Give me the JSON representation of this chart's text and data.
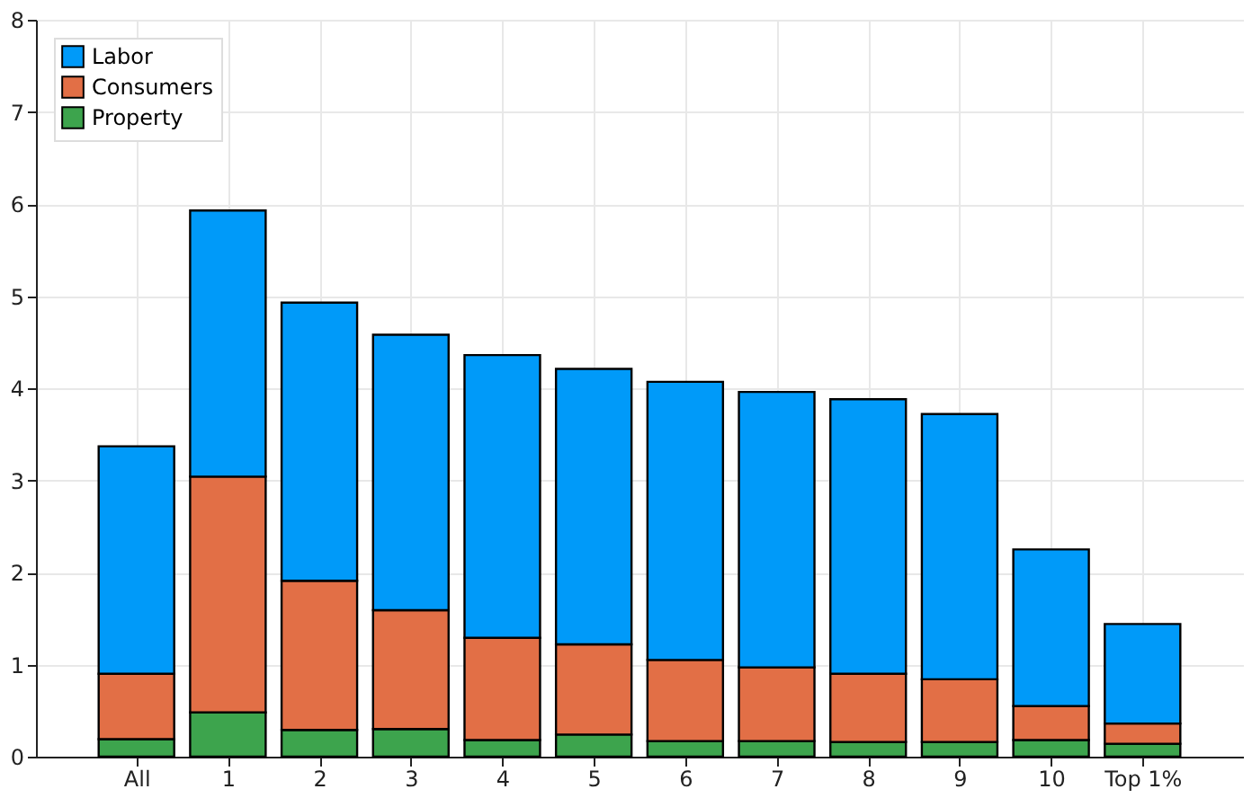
{
  "chart_data": {
    "type": "bar",
    "stacked": true,
    "categories": [
      "All",
      "1",
      "2",
      "3",
      "4",
      "5",
      "6",
      "7",
      "8",
      "9",
      "10",
      "Top 1%"
    ],
    "series": [
      {
        "name": "Property",
        "color": "#3da44d",
        "values": [
          0.19,
          0.48,
          0.29,
          0.3,
          0.18,
          0.24,
          0.17,
          0.17,
          0.16,
          0.16,
          0.18,
          0.14
        ]
      },
      {
        "name": "Consumers",
        "color": "#e26f46",
        "values": [
          0.71,
          2.56,
          1.62,
          1.29,
          1.11,
          0.98,
          0.88,
          0.8,
          0.74,
          0.68,
          0.37,
          0.22
        ]
      },
      {
        "name": "Labor",
        "color": "#009af9",
        "values": [
          2.47,
          2.89,
          3.02,
          2.99,
          3.07,
          2.99,
          3.02,
          2.99,
          2.98,
          2.88,
          1.7,
          1.08
        ]
      }
    ],
    "ylim": [
      0,
      8
    ],
    "yticks": [
      0,
      1,
      2,
      3,
      4,
      5,
      6,
      7,
      8
    ],
    "grid": true,
    "legend": "top left"
  }
}
